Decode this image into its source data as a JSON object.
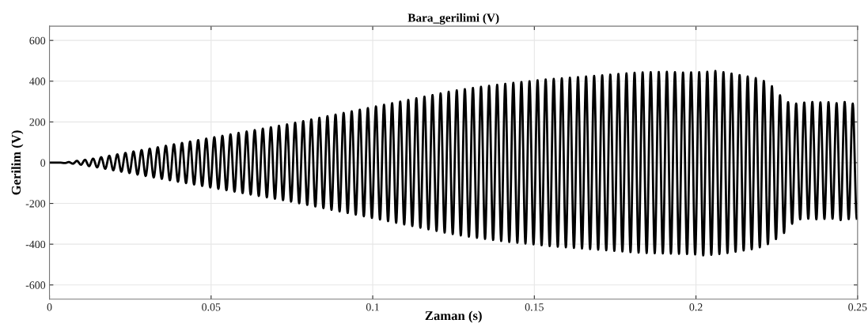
{
  "chart_data": {
    "type": "line",
    "title": "Bara_gerilimi (V)",
    "xlabel": "Zaman (s)",
    "ylabel": "Gerilim (V)",
    "xlim": [
      0,
      0.25
    ],
    "ylim": [
      -670,
      670
    ],
    "xticks": [
      0,
      0.05,
      0.1,
      0.15,
      0.2,
      0.25
    ],
    "yticks": [
      -600,
      -400,
      -200,
      0,
      200,
      400,
      600
    ],
    "grid": true,
    "legend": false,
    "marker": "none",
    "line_style": "solid",
    "series": [
      {
        "color": "#000000",
        "x": [
          0,
          0.001,
          0.00225,
          0.0035,
          0.00475,
          0.006,
          0.00725,
          0.0085,
          0.00975,
          0.011,
          0.01225,
          0.0135,
          0.01475,
          0.016,
          0.01725,
          0.0185,
          0.01975,
          0.021,
          0.02225,
          0.0235,
          0.02475,
          0.026,
          0.02725,
          0.0285,
          0.02975,
          0.031,
          0.03225,
          0.0335,
          0.03475,
          0.036,
          0.03725,
          0.0385,
          0.03975,
          0.041,
          0.04225,
          0.0435,
          0.04475,
          0.046,
          0.04725,
          0.0485,
          0.04975,
          0.051,
          0.05225,
          0.0535,
          0.05475,
          0.056,
          0.05725,
          0.0585,
          0.05975,
          0.061,
          0.06225,
          0.0635,
          0.06475,
          0.066,
          0.06725,
          0.0685,
          0.06975,
          0.071,
          0.07225,
          0.0735,
          0.07475,
          0.076,
          0.07725,
          0.0785,
          0.07975,
          0.081,
          0.08225,
          0.0835,
          0.08475,
          0.086,
          0.08725,
          0.0885,
          0.08975,
          0.091,
          0.09225,
          0.0935,
          0.09475,
          0.096,
          0.09725,
          0.0985,
          0.09975,
          0.101,
          0.10225,
          0.1035,
          0.10475,
          0.106,
          0.10725,
          0.1085,
          0.10975,
          0.111,
          0.11225,
          0.1135,
          0.11475,
          0.116,
          0.11725,
          0.1185,
          0.11975,
          0.121,
          0.12225,
          0.1235,
          0.12475,
          0.126,
          0.12725,
          0.1285,
          0.12975,
          0.131,
          0.13225,
          0.1335,
          0.13475,
          0.136,
          0.13725,
          0.1385,
          0.13975,
          0.141,
          0.14225,
          0.1435,
          0.14475,
          0.146,
          0.14725,
          0.1485,
          0.14975,
          0.151,
          0.15225,
          0.1535,
          0.15475,
          0.156,
          0.15725,
          0.1585,
          0.15975,
          0.161,
          0.16225,
          0.1635,
          0.16475,
          0.166,
          0.16725,
          0.1685,
          0.16975,
          0.171,
          0.17225,
          0.1735,
          0.17475,
          0.176,
          0.17725,
          0.1785,
          0.17975,
          0.181,
          0.18225,
          0.1835,
          0.18475,
          0.186,
          0.18725,
          0.1885,
          0.18975,
          0.191,
          0.19225,
          0.1935,
          0.19475,
          0.196,
          0.19725,
          0.1985,
          0.19975,
          0.201,
          0.20225,
          0.2035,
          0.20475,
          0.206,
          0.20725,
          0.2085,
          0.20975,
          0.211,
          0.21225,
          0.2135,
          0.21475,
          0.216,
          0.21725,
          0.2185,
          0.21975,
          0.221,
          0.22225,
          0.2235,
          0.22475,
          0.226,
          0.22725,
          0.2285,
          0.22975,
          0.231,
          0.23225,
          0.2335,
          0.23475,
          0.236,
          0.23725,
          0.2385,
          0.23975,
          0.241,
          0.24225,
          0.2435,
          0.24475,
          0.246,
          0.24725,
          0.2485,
          0.24975
        ],
        "values": [
          0,
          0,
          0,
          0,
          -2,
          3,
          -5,
          9,
          -10,
          14,
          -17,
          20,
          -23,
          27,
          -30,
          34,
          -37,
          41,
          -44,
          48,
          -51,
          55,
          -58,
          62,
          -65,
          69,
          -72,
          76,
          -79,
          83,
          -86,
          90,
          -93,
          97,
          -100,
          104,
          -107,
          111,
          -114,
          118,
          -121,
          125,
          -128,
          132,
          -135,
          139,
          -142,
          146,
          -149,
          153,
          -156,
          160,
          -163,
          167,
          -170,
          174,
          -177,
          181,
          -184,
          188,
          -191,
          196,
          -199,
          204,
          -207,
          212,
          -215,
          220,
          -223,
          228,
          -231,
          236,
          -239,
          244,
          -247,
          252,
          -255,
          260,
          -263,
          268,
          -271,
          276,
          -279,
          284,
          -287,
          292,
          -295,
          300,
          -303,
          308,
          -311,
          316,
          -319,
          324,
          -327,
          332,
          -335,
          340,
          -343,
          348,
          -350,
          355,
          -357,
          361,
          -363,
          367,
          -369,
          372,
          -374,
          377,
          -379,
          382,
          -384,
          387,
          -389,
          392,
          -393,
          396,
          -397,
          400,
          -401,
          404,
          -405,
          408,
          -409,
          411,
          -412,
          414,
          -415,
          417,
          -418,
          420,
          -421,
          423,
          -424,
          426,
          -427,
          429,
          -430,
          432,
          -433,
          435,
          -436,
          438,
          -439,
          441,
          -441,
          443,
          -443,
          444,
          -444,
          445,
          -445,
          446,
          -446,
          444,
          -447,
          442,
          -448,
          443,
          -450,
          444,
          -455,
          446,
          -452,
          450,
          -448,
          444,
          -443,
          437,
          -437,
          430,
          -431,
          423,
          -425,
          415,
          -415,
          401,
          -400,
          375,
          -375,
          331,
          -345,
          297,
          -300,
          290,
          -278,
          295,
          -275,
          298,
          -278,
          296,
          -276,
          297,
          -275,
          292,
          -282,
          298,
          -277,
          290,
          -275
        ]
      }
    ]
  }
}
